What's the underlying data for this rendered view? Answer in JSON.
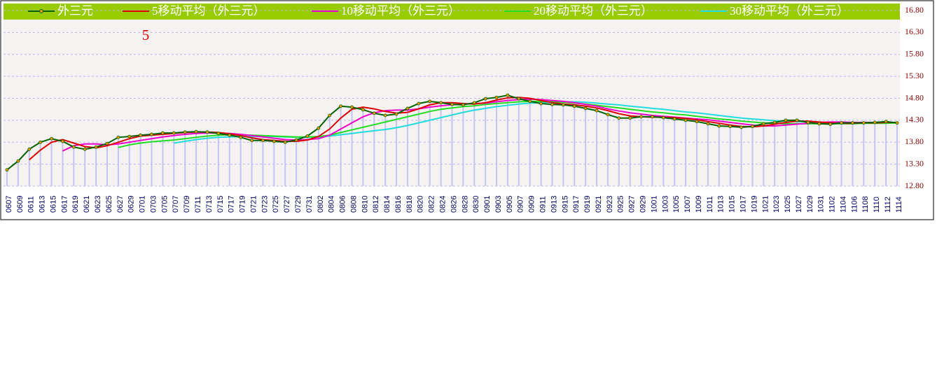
{
  "chart_data": {
    "type": "line",
    "annotation": "5",
    "legend": "top",
    "grid": true,
    "categories": [
      "0607",
      "0609",
      "0611",
      "0613",
      "0615",
      "0617",
      "0619",
      "0621",
      "0623",
      "0625",
      "0627",
      "0629",
      "0701",
      "0703",
      "0705",
      "0707",
      "0709",
      "0711",
      "0713",
      "0715",
      "0717",
      "0719",
      "0721",
      "0723",
      "0725",
      "0727",
      "0729",
      "0731",
      "0802",
      "0804",
      "0806",
      "0808",
      "0810",
      "0812",
      "0814",
      "0816",
      "0818",
      "0820",
      "0822",
      "0824",
      "0826",
      "0828",
      "0830",
      "0901",
      "0903",
      "0905",
      "0907",
      "0909",
      "0911",
      "0913",
      "0915",
      "0917",
      "0919",
      "0921",
      "0923",
      "0925",
      "0927",
      "0929",
      "1001",
      "1003",
      "1005",
      "1007",
      "1009",
      "1011",
      "1013",
      "1015",
      "1017",
      "1019",
      "1021",
      "1023",
      "1025",
      "1027",
      "1029",
      "1031",
      "1102",
      "1104",
      "1106",
      "1108",
      "1110",
      "1112",
      "1114"
    ],
    "series": [
      {
        "name": "外三元",
        "color": "#006400",
        "values": [
          13.17,
          13.37,
          13.64,
          13.8,
          13.88,
          13.82,
          13.69,
          13.64,
          13.69,
          13.77,
          13.91,
          13.93,
          13.96,
          13.98,
          14.01,
          14.01,
          14.03,
          14.04,
          14.03,
          14.0,
          13.96,
          13.91,
          13.84,
          13.84,
          13.82,
          13.8,
          13.85,
          13.94,
          14.12,
          14.41,
          14.62,
          14.6,
          14.54,
          14.46,
          14.41,
          14.44,
          14.57,
          14.68,
          14.73,
          14.7,
          14.66,
          14.65,
          14.7,
          14.79,
          14.82,
          14.87,
          14.79,
          14.73,
          14.68,
          14.66,
          14.65,
          14.62,
          14.57,
          14.52,
          14.43,
          14.35,
          14.35,
          14.38,
          14.38,
          14.36,
          14.33,
          14.3,
          14.27,
          14.22,
          14.17,
          14.16,
          14.14,
          14.16,
          14.22,
          14.25,
          14.3,
          14.3,
          14.25,
          14.22,
          14.21,
          14.24,
          14.24,
          14.24,
          14.25,
          14.27,
          14.24
        ]
      },
      {
        "name": "5移动平均（外三元）",
        "color": "#dd0000",
        "values": [
          null,
          null,
          13.4,
          13.62,
          13.8,
          13.86,
          13.78,
          13.7,
          13.67,
          13.72,
          13.8,
          13.88,
          13.94,
          13.96,
          13.98,
          14.0,
          14.02,
          14.03,
          14.03,
          14.02,
          13.99,
          13.95,
          13.9,
          13.86,
          13.84,
          13.82,
          13.82,
          13.85,
          13.93,
          14.1,
          14.35,
          14.55,
          14.6,
          14.56,
          14.5,
          14.46,
          14.48,
          14.56,
          14.65,
          14.7,
          14.7,
          14.68,
          14.67,
          14.7,
          14.76,
          14.81,
          14.82,
          14.8,
          14.75,
          14.7,
          14.67,
          14.65,
          14.62,
          14.58,
          14.52,
          14.45,
          14.4,
          14.38,
          14.37,
          14.37,
          14.36,
          14.34,
          14.31,
          14.27,
          14.23,
          14.19,
          14.16,
          14.15,
          14.17,
          14.21,
          14.25,
          14.28,
          14.28,
          14.26,
          14.24,
          14.23,
          14.23,
          14.24,
          14.24,
          14.25,
          14.25
        ]
      },
      {
        "name": "10移动平均（外三元）",
        "color": "#ee00cc",
        "values": [
          null,
          null,
          null,
          null,
          null,
          13.6,
          13.72,
          13.76,
          13.76,
          13.74,
          13.76,
          13.8,
          13.84,
          13.88,
          13.92,
          13.95,
          13.98,
          14.0,
          14.01,
          14.01,
          14.0,
          13.98,
          13.95,
          13.92,
          13.89,
          13.86,
          13.85,
          13.86,
          13.88,
          13.96,
          14.1,
          14.24,
          14.38,
          14.47,
          14.52,
          14.53,
          14.53,
          14.56,
          14.6,
          14.63,
          14.65,
          14.67,
          14.68,
          14.69,
          14.72,
          14.75,
          14.77,
          14.78,
          14.77,
          14.75,
          14.73,
          14.7,
          14.66,
          14.62,
          14.56,
          14.51,
          14.47,
          14.44,
          14.41,
          14.39,
          14.37,
          14.35,
          14.33,
          14.31,
          14.28,
          14.25,
          14.22,
          14.19,
          14.17,
          14.17,
          14.19,
          14.21,
          14.23,
          14.25,
          14.26,
          14.26,
          14.25,
          14.25,
          14.25,
          14.25,
          14.25
        ]
      },
      {
        "name": "20移动平均（外三元）",
        "color": "#22dd22",
        "values": [
          null,
          null,
          null,
          null,
          null,
          null,
          null,
          null,
          null,
          null,
          13.68,
          13.74,
          13.78,
          13.81,
          13.83,
          13.85,
          13.88,
          13.91,
          13.94,
          13.96,
          13.97,
          13.97,
          13.96,
          13.95,
          13.94,
          13.93,
          13.92,
          13.92,
          13.93,
          13.96,
          14.02,
          14.08,
          14.14,
          14.2,
          14.26,
          14.32,
          14.38,
          14.44,
          14.5,
          14.55,
          14.58,
          14.61,
          14.63,
          14.66,
          14.68,
          14.7,
          14.72,
          14.73,
          14.73,
          14.72,
          14.71,
          14.69,
          14.67,
          14.64,
          14.61,
          14.58,
          14.55,
          14.52,
          14.49,
          14.47,
          14.44,
          14.42,
          14.39,
          14.36,
          14.33,
          14.31,
          14.28,
          14.26,
          14.24,
          14.23,
          14.22,
          14.22,
          14.22,
          14.22,
          14.22,
          14.22,
          14.22,
          14.23,
          14.23,
          14.23,
          14.24
        ]
      },
      {
        "name": "30移动平均（外三元）",
        "color": "#22dddd",
        "values": [
          null,
          null,
          null,
          null,
          null,
          null,
          null,
          null,
          null,
          null,
          null,
          null,
          null,
          null,
          null,
          13.78,
          13.82,
          13.86,
          13.89,
          13.91,
          13.92,
          13.93,
          13.93,
          13.93,
          13.93,
          13.92,
          13.91,
          13.91,
          13.92,
          13.94,
          13.97,
          14.0,
          14.03,
          14.06,
          14.09,
          14.13,
          14.18,
          14.24,
          14.3,
          14.36,
          14.42,
          14.48,
          14.53,
          14.57,
          14.61,
          14.64,
          14.67,
          14.69,
          14.7,
          14.71,
          14.72,
          14.72,
          14.71,
          14.69,
          14.67,
          14.65,
          14.62,
          14.6,
          14.57,
          14.55,
          14.52,
          14.49,
          14.47,
          14.44,
          14.41,
          14.38,
          14.35,
          14.33,
          14.31,
          14.29,
          14.28,
          14.27,
          14.26,
          14.25,
          14.24,
          14.24,
          14.24,
          14.24,
          14.24,
          14.24,
          14.24
        ]
      }
    ],
    "ylim": [
      12.8,
      16.8
    ],
    "yticks": [
      {
        "value": 12.8,
        "label": "12.80"
      },
      {
        "value": 13.3,
        "label": "13.30"
      },
      {
        "value": 13.8,
        "label": "13.80"
      },
      {
        "value": 14.3,
        "label": "14.30"
      },
      {
        "value": 14.8,
        "label": "14.80"
      },
      {
        "value": 15.3,
        "label": "15.30"
      },
      {
        "value": 15.8,
        "label": "15.80"
      },
      {
        "value": 16.3,
        "label": "16.30"
      },
      {
        "value": 16.8,
        "label": "16.80"
      }
    ]
  }
}
